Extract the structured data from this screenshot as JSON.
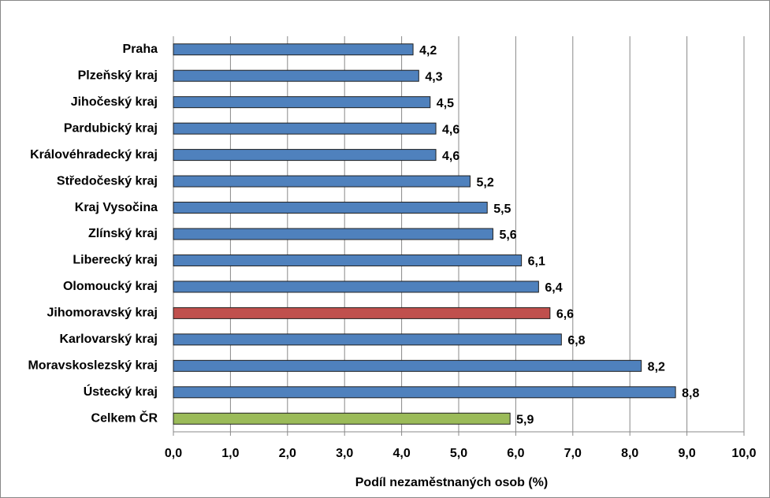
{
  "chart_data": {
    "type": "hbar",
    "categories": [
      "Praha",
      "Plzeňský kraj",
      "Jihočeský kraj",
      "Pardubický kraj",
      "Královéhradecký kraj",
      "Středočeský kraj",
      "Kraj Vysočina",
      "Zlínský kraj",
      "Liberecký kraj",
      "Olomoucký kraj",
      "Jihomoravský kraj",
      "Karlovarský kraj",
      "Moravskoslezský kraj",
      "Ústecký kraj",
      "Celkem ČR"
    ],
    "values": [
      4.2,
      4.3,
      4.5,
      4.6,
      4.6,
      5.2,
      5.5,
      5.6,
      6.1,
      6.4,
      6.6,
      6.8,
      8.2,
      8.8,
      5.9
    ],
    "value_labels": [
      "4,2",
      "4,3",
      "4,5",
      "4,6",
      "4,6",
      "5,2",
      "5,5",
      "5,6",
      "6,1",
      "6,4",
      "6,6",
      "6,8",
      "8,2",
      "8,8",
      "5,9"
    ],
    "colors": [
      "#4f81bd",
      "#4f81bd",
      "#4f81bd",
      "#4f81bd",
      "#4f81bd",
      "#4f81bd",
      "#4f81bd",
      "#4f81bd",
      "#4f81bd",
      "#4f81bd",
      "#c0504d",
      "#4f81bd",
      "#4f81bd",
      "#4f81bd",
      "#9bbb59"
    ],
    "xlabel": "Podíl nezaměstnaných osob (%)",
    "xlim": [
      0,
      10
    ],
    "xticks": [
      {
        "value": 0,
        "label": "0,0"
      },
      {
        "value": 1,
        "label": "1,0"
      },
      {
        "value": 2,
        "label": "2,0"
      },
      {
        "value": 3,
        "label": "3,0"
      },
      {
        "value": 4,
        "label": "4,0"
      },
      {
        "value": 5,
        "label": "5,0"
      },
      {
        "value": 6,
        "label": "6,0"
      },
      {
        "value": 7,
        "label": "7,0"
      },
      {
        "value": 8,
        "label": "8,0"
      },
      {
        "value": 9,
        "label": "9,0"
      },
      {
        "value": 10,
        "label": "10,0"
      }
    ],
    "grid": true
  }
}
